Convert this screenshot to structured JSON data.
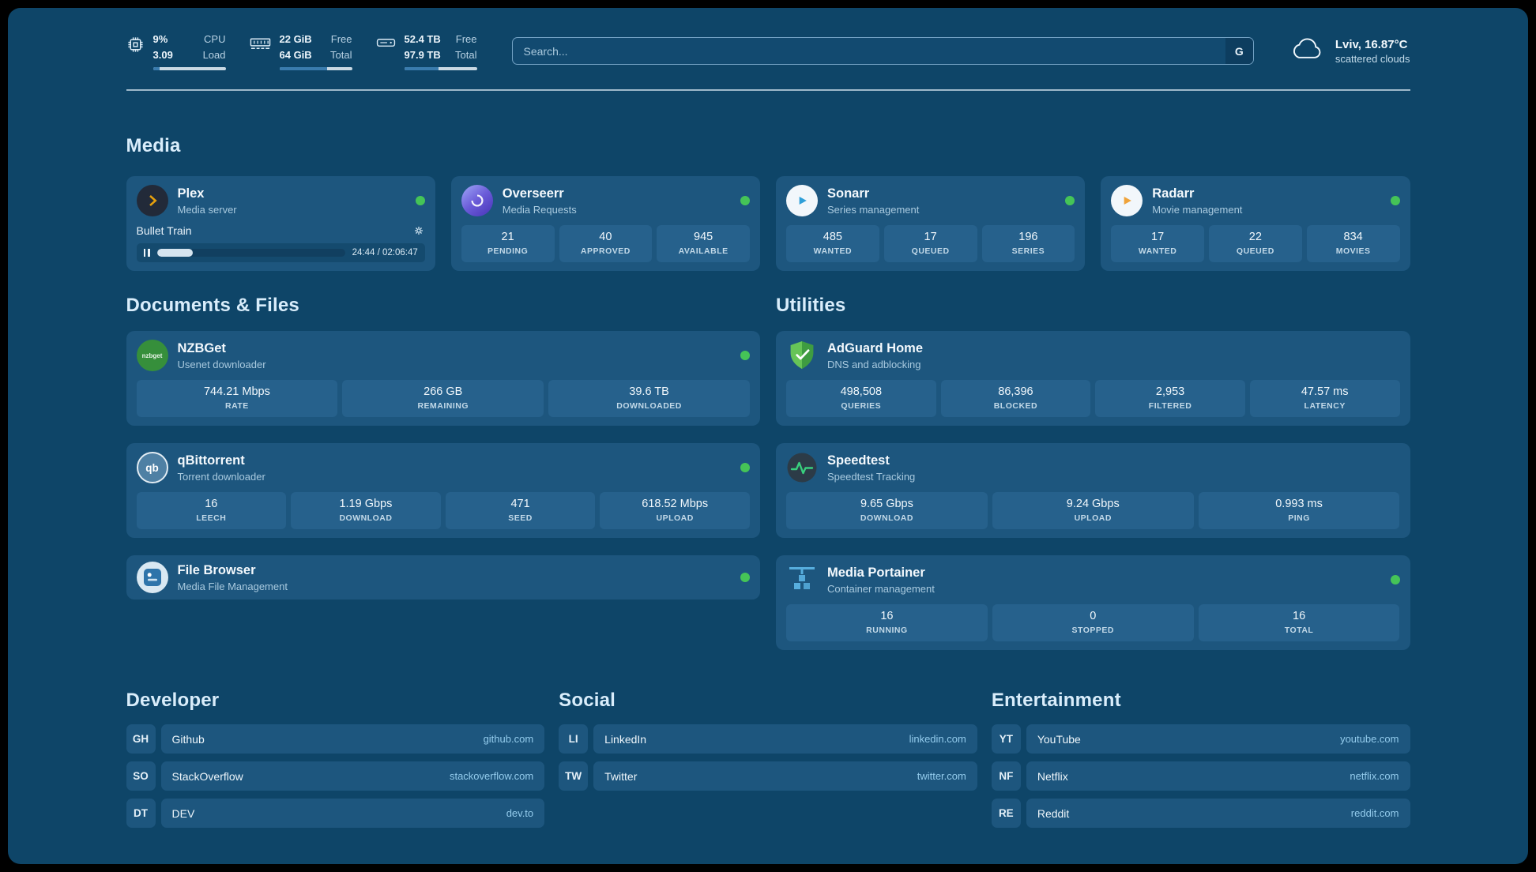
{
  "topbar": {
    "cpu": {
      "value1": "9%",
      "value2": "3.09",
      "label1": "CPU",
      "label2": "Load",
      "percent": 9
    },
    "memory": {
      "value1": "22 GiB",
      "value2": "64 GiB",
      "label1": "Free",
      "label2": "Total",
      "percent": 66
    },
    "disk": {
      "value1": "52.4 TB",
      "value2": "97.9 TB",
      "label1": "Free",
      "label2": "Total",
      "percent": 47
    },
    "search": {
      "placeholder": "Search...",
      "engine_label": "G"
    },
    "weather": {
      "location": "Lviv, 16.87°C",
      "condition": "scattered clouds"
    }
  },
  "section_titles": {
    "media": "Media",
    "documents": "Documents & Files",
    "utilities": "Utilities"
  },
  "media_cards": [
    {
      "name": "Plex",
      "subtitle": "Media server",
      "player": {
        "title": "Bullet Train",
        "time": "24:44 / 02:06:47",
        "progress": 19
      }
    },
    {
      "name": "Overseerr",
      "subtitle": "Media Requests",
      "stats": [
        {
          "value": "21",
          "label": "PENDING"
        },
        {
          "value": "40",
          "label": "APPROVED"
        },
        {
          "value": "945",
          "label": "AVAILABLE"
        }
      ]
    },
    {
      "name": "Sonarr",
      "subtitle": "Series management",
      "stats": [
        {
          "value": "485",
          "label": "WANTED"
        },
        {
          "value": "17",
          "label": "QUEUED"
        },
        {
          "value": "196",
          "label": "SERIES"
        }
      ]
    },
    {
      "name": "Radarr",
      "subtitle": "Movie management",
      "stats": [
        {
          "value": "17",
          "label": "WANTED"
        },
        {
          "value": "22",
          "label": "QUEUED"
        },
        {
          "value": "834",
          "label": "MOVIES"
        }
      ]
    }
  ],
  "document_cards": [
    {
      "name": "NZBGet",
      "subtitle": "Usenet downloader",
      "stats": [
        {
          "value": "744.21 Mbps",
          "label": "RATE"
        },
        {
          "value": "266 GB",
          "label": "REMAINING"
        },
        {
          "value": "39.6 TB",
          "label": "DOWNLOADED"
        }
      ]
    },
    {
      "name": "qBittorrent",
      "subtitle": "Torrent downloader",
      "stats": [
        {
          "value": "16",
          "label": "LEECH"
        },
        {
          "value": "1.19 Gbps",
          "label": "DOWNLOAD"
        },
        {
          "value": "471",
          "label": "SEED"
        },
        {
          "value": "618.52 Mbps",
          "label": "UPLOAD"
        }
      ]
    },
    {
      "name": "File Browser",
      "subtitle": "Media File Management"
    }
  ],
  "utility_cards": [
    {
      "name": "AdGuard Home",
      "subtitle": "DNS and adblocking",
      "stats": [
        {
          "value": "498,508",
          "label": "QUERIES"
        },
        {
          "value": "86,396",
          "label": "BLOCKED"
        },
        {
          "value": "2,953",
          "label": "FILTERED"
        },
        {
          "value": "47.57 ms",
          "label": "LATENCY"
        }
      ]
    },
    {
      "name": "Speedtest",
      "subtitle": "Speedtest Tracking",
      "stats": [
        {
          "value": "9.65 Gbps",
          "label": "DOWNLOAD"
        },
        {
          "value": "9.24 Gbps",
          "label": "UPLOAD"
        },
        {
          "value": "0.993 ms",
          "label": "PING"
        }
      ]
    },
    {
      "name": "Media Portainer",
      "subtitle": "Container management",
      "stats": [
        {
          "value": "16",
          "label": "RUNNING"
        },
        {
          "value": "0",
          "label": "STOPPED"
        },
        {
          "value": "16",
          "label": "TOTAL"
        }
      ]
    }
  ],
  "bookmarks": [
    {
      "title": "Developer",
      "items": [
        {
          "abbr": "GH",
          "name": "Github",
          "url": "github.com"
        },
        {
          "abbr": "SO",
          "name": "StackOverflow",
          "url": "stackoverflow.com"
        },
        {
          "abbr": "DT",
          "name": "DEV",
          "url": "dev.to"
        }
      ]
    },
    {
      "title": "Social",
      "items": [
        {
          "abbr": "LI",
          "name": "LinkedIn",
          "url": "linkedin.com"
        },
        {
          "abbr": "TW",
          "name": "Twitter",
          "url": "twitter.com"
        }
      ]
    },
    {
      "title": "Entertainment",
      "items": [
        {
          "abbr": "YT",
          "name": "YouTube",
          "url": "youtube.com"
        },
        {
          "abbr": "NF",
          "name": "Netflix",
          "url": "netflix.com"
        },
        {
          "abbr": "RE",
          "name": "Reddit",
          "url": "reddit.com"
        }
      ]
    }
  ],
  "icons": {
    "nzbget": "nzbget",
    "qbittorrent": "qb"
  }
}
